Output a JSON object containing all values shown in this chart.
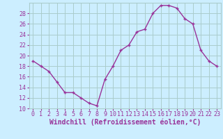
{
  "x": [
    0,
    1,
    2,
    3,
    4,
    5,
    6,
    7,
    8,
    9,
    10,
    11,
    12,
    13,
    14,
    15,
    16,
    17,
    18,
    19,
    20,
    21,
    22,
    23
  ],
  "y": [
    19,
    18,
    17,
    15,
    13,
    13,
    12,
    11,
    10.5,
    15.5,
    18,
    21,
    22,
    24.5,
    25,
    28,
    29.5,
    29.5,
    29,
    27,
    26,
    21,
    19,
    18
  ],
  "line_color": "#993399",
  "marker": "+",
  "marker_size": 3.5,
  "marker_linewidth": 1.0,
  "line_width": 1.0,
  "bg_color": "#cceeff",
  "grid_color": "#aacccc",
  "xlabel": "Windchill (Refroidissement éolien,°C)",
  "xlabel_fontsize": 7,
  "tick_fontsize": 6,
  "tick_color": "#993399",
  "ylim": [
    10,
    30
  ],
  "yticks": [
    10,
    12,
    14,
    16,
    18,
    20,
    22,
    24,
    26,
    28
  ],
  "xticks": [
    0,
    1,
    2,
    3,
    4,
    5,
    6,
    7,
    8,
    9,
    10,
    11,
    12,
    13,
    14,
    15,
    16,
    17,
    18,
    19,
    20,
    21,
    22,
    23
  ],
  "xlim": [
    -0.5,
    23.5
  ]
}
